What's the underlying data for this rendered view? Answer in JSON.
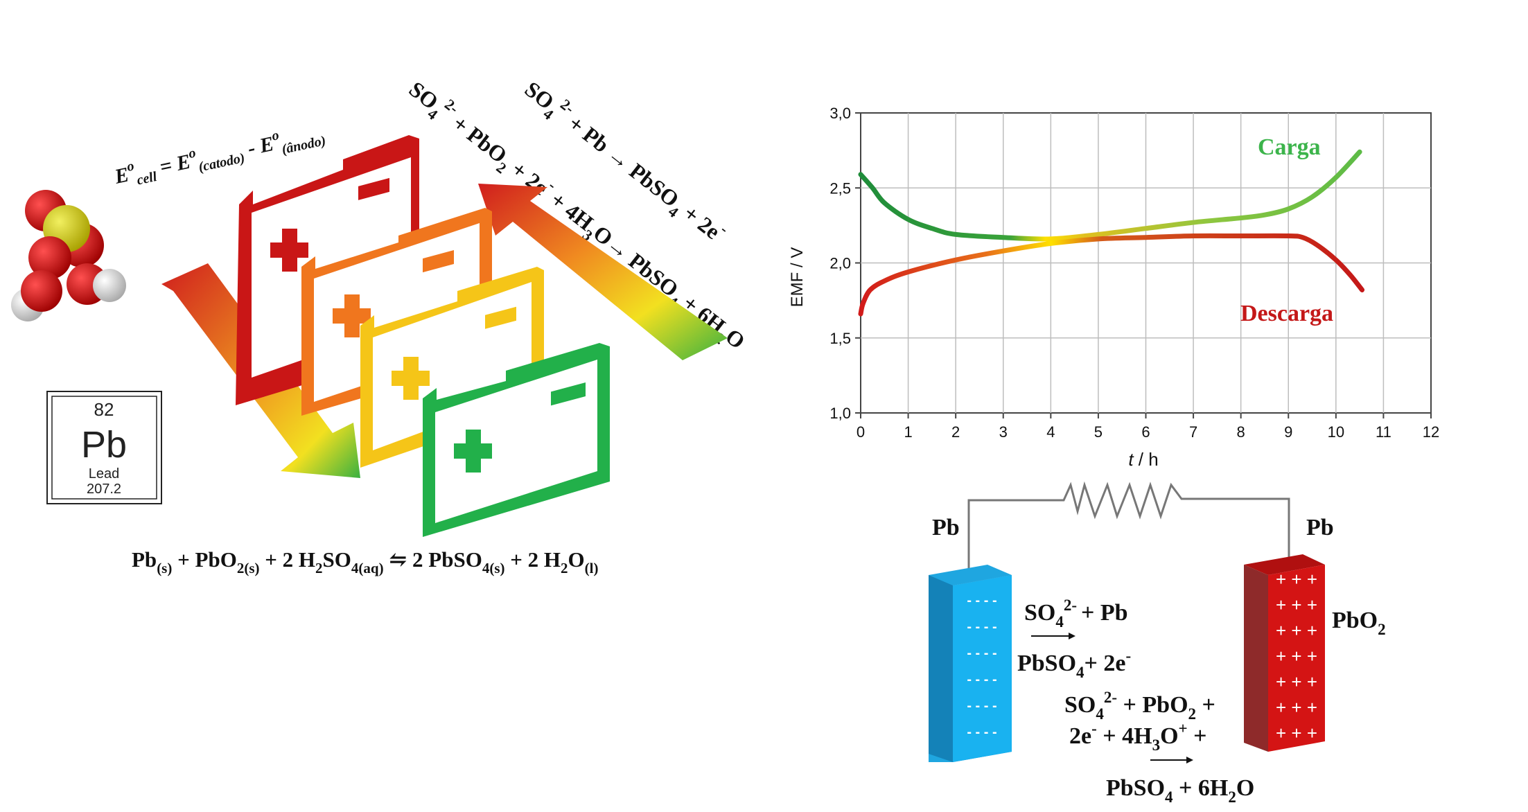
{
  "formula_ecell": {
    "e": "E",
    "o1": "o",
    "cell": "cell",
    "eq": " = E",
    "o2": "o",
    "catodo": "(catodo)",
    "minus": " - E",
    "o3": "o",
    "anodo": "(ânodo)"
  },
  "reaction_charge": {
    "so4": "SO",
    "sub4": "4",
    "sup": "2-",
    "rest": " + Pb → PbSO",
    "sub4b": "4",
    "end": " + 2e",
    "esup": "-"
  },
  "reaction_discharge": {
    "so4": "SO",
    "sub4": "4",
    "sup": "2-",
    "mid": " + PbO",
    "sub2": "2",
    "mid2": " + 2e",
    "esup": "-",
    "mid3": " + 4H",
    "sub3": "3",
    "mid4": "O→ PbSO",
    "sub4b": "4",
    "mid5": " + 6H",
    "sub2b": "2",
    "end": "O"
  },
  "element_card": {
    "number": "82",
    "symbol": "Pb",
    "name": "Lead",
    "mass": "207.2"
  },
  "overall_equation": {
    "pb": "Pb",
    "s1": "(s)",
    "t1": " + PbO",
    "s2": "2(s)",
    "t2": " + 2 H",
    "s3": "2",
    "t3": "SO",
    "s4": "4(aq)",
    "t4": " ⇋ 2 PbSO",
    "s5": "4(s)",
    "t5": " + 2 H",
    "s6": "2",
    "t6": "O",
    "s7": "(l)"
  },
  "chart_data": {
    "type": "line",
    "xlabel_italic": "t",
    "xlabel_unit": " / h",
    "ylabel": "EMF / V",
    "xlim": [
      0,
      12
    ],
    "ylim": [
      1.0,
      3.0
    ],
    "x_ticks": [
      "0",
      "1",
      "2",
      "3",
      "4",
      "5",
      "6",
      "7",
      "8",
      "9",
      "10",
      "11",
      "12"
    ],
    "y_ticks": [
      "1,0",
      "1,5",
      "2,0",
      "2,5",
      "3,0"
    ],
    "grid": true,
    "series": [
      {
        "name": "Carga",
        "color": "#3cb44b",
        "x": [
          0,
          0.25,
          0.5,
          1,
          1.5,
          2,
          3,
          4,
          5,
          6,
          7,
          8,
          8.5,
          9,
          9.5,
          10,
          10.5
        ],
        "y": [
          2.59,
          2.5,
          2.4,
          2.29,
          2.23,
          2.19,
          2.17,
          2.16,
          2.19,
          2.23,
          2.27,
          2.3,
          2.32,
          2.36,
          2.44,
          2.57,
          2.74
        ]
      },
      {
        "name": "Descarga",
        "color": "#d11a1a",
        "x": [
          0,
          0.05,
          0.2,
          0.5,
          1,
          2,
          3,
          4,
          5,
          6,
          7,
          8,
          9,
          9.3,
          9.6,
          10,
          10.3,
          10.55
        ],
        "y": [
          1.66,
          1.73,
          1.82,
          1.88,
          1.94,
          2.02,
          2.08,
          2.13,
          2.16,
          2.17,
          2.18,
          2.18,
          2.18,
          2.17,
          2.12,
          2.02,
          1.92,
          1.82
        ]
      }
    ]
  },
  "cell_diagram": {
    "left_label": "Pb",
    "right_label": "Pb",
    "pbo2_label": "PbO",
    "pbo2_sub": "2",
    "anode_charges": [
      "- - - -",
      "- - - -",
      "- - - -",
      "- - - -",
      "- - - -",
      "- - - -"
    ],
    "cathode_charges": [
      "+ + +",
      "+ + +",
      "+ + +",
      "+ + +",
      "+ + +",
      "+ + +",
      "+ + +"
    ],
    "anode_rx1": {
      "a": "SO",
      "sub": "4",
      "sup": "2-",
      "b": "+ Pb"
    },
    "anode_rx2": {
      "a": "PbSO",
      "sub": "4",
      "b": "+ 2e",
      "sup": "-"
    },
    "cathode_rx1": {
      "a": "SO",
      "sub": "4",
      "sup": "2-",
      "b": " + PbO",
      "sub2": "2",
      "c": " +"
    },
    "cathode_rx2": {
      "a": "2e",
      "sup": "-",
      "b": " + 4H",
      "sub": "3",
      "c": "O",
      "sup2": "+",
      "d": "  +"
    },
    "cathode_rx3": {
      "a": "PbSO",
      "sub": "4",
      "b": " + 6H",
      "sub2": "2",
      "c": "O"
    }
  }
}
